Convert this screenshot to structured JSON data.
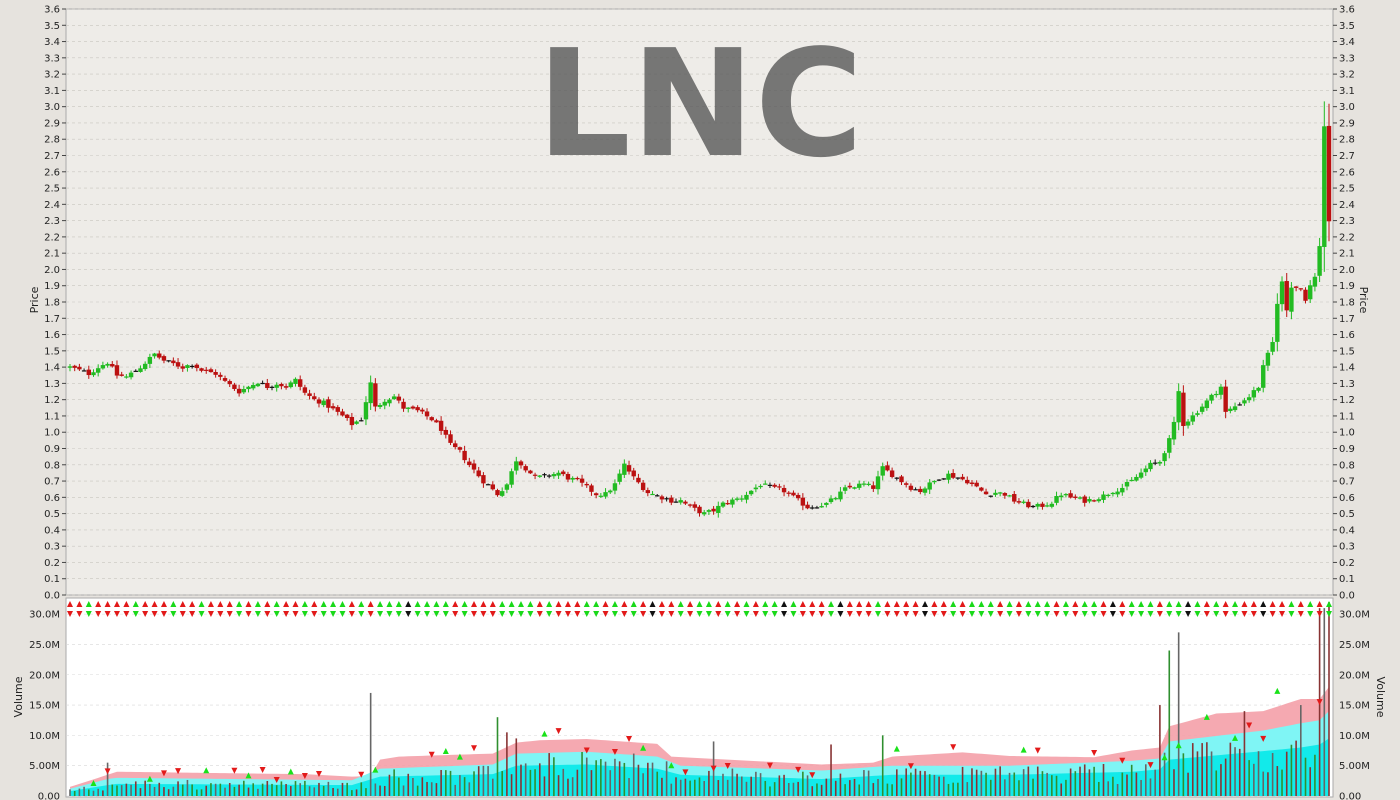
{
  "chart_data": {
    "type": "candlestick",
    "watermark": "LNC",
    "colors": {
      "up": "#22bb22",
      "down": "#bb1111",
      "neutral": "#111111",
      "volume_band_outer": "#f4a0a8",
      "volume_band_mid": "#7ff5f5",
      "volume_band_inner": "#12eaea",
      "plot_bg": "#eeece8",
      "volume_bg": "#ffffff",
      "grid": "#c8c5bf"
    },
    "price_panel": {
      "ylabel": "Price",
      "ylim": [
        0,
        3.6
      ],
      "ticks": [
        "0.0",
        "0.1",
        "0.2",
        "0.3",
        "0.4",
        "0.5",
        "0.6",
        "0.7",
        "0.8",
        "0.9",
        "1.0",
        "1.1",
        "1.2",
        "1.3",
        "1.4",
        "1.5",
        "1.6",
        "1.7",
        "1.8",
        "1.9",
        "2.0",
        "2.1",
        "2.2",
        "2.3",
        "2.4",
        "2.5",
        "2.6",
        "2.7",
        "2.8",
        "2.9",
        "3.0",
        "3.1",
        "3.2",
        "3.3",
        "3.4",
        "3.5",
        "3.6"
      ],
      "close_path": [
        [
          0,
          1.4
        ],
        [
          2,
          1.38
        ],
        [
          4,
          1.36
        ],
        [
          6,
          1.4
        ],
        [
          8,
          1.43
        ],
        [
          10,
          1.35
        ],
        [
          12,
          1.34
        ],
        [
          15,
          1.4
        ],
        [
          18,
          1.48
        ],
        [
          20,
          1.44
        ],
        [
          22,
          1.42
        ],
        [
          24,
          1.4
        ],
        [
          26,
          1.42
        ],
        [
          28,
          1.38
        ],
        [
          31,
          1.36
        ],
        [
          33,
          1.31
        ],
        [
          36,
          1.25
        ],
        [
          38,
          1.28
        ],
        [
          40,
          1.31
        ],
        [
          42,
          1.28
        ],
        [
          44,
          1.3
        ],
        [
          46,
          1.28
        ],
        [
          48,
          1.32
        ],
        [
          50,
          1.24
        ],
        [
          52,
          1.2
        ],
        [
          54,
          1.18
        ],
        [
          56,
          1.14
        ],
        [
          58,
          1.1
        ],
        [
          60,
          1.05
        ],
        [
          62,
          1.08
        ],
        [
          64,
          1.3
        ],
        [
          65,
          1.15
        ],
        [
          67,
          1.2
        ],
        [
          69,
          1.22
        ],
        [
          71,
          1.15
        ],
        [
          74,
          1.13
        ],
        [
          77,
          1.08
        ],
        [
          79,
          1.02
        ],
        [
          81,
          0.92
        ],
        [
          83,
          0.88
        ],
        [
          85,
          0.8
        ],
        [
          88,
          0.7
        ],
        [
          91,
          0.62
        ],
        [
          93,
          0.68
        ],
        [
          95,
          0.83
        ],
        [
          97,
          0.78
        ],
        [
          99,
          0.72
        ],
        [
          101,
          0.73
        ],
        [
          104,
          0.75
        ],
        [
          106,
          0.72
        ],
        [
          108,
          0.7
        ],
        [
          110,
          0.66
        ],
        [
          112,
          0.62
        ],
        [
          114,
          0.62
        ],
        [
          116,
          0.68
        ],
        [
          118,
          0.8
        ],
        [
          120,
          0.72
        ],
        [
          123,
          0.63
        ],
        [
          126,
          0.6
        ],
        [
          128,
          0.58
        ],
        [
          130,
          0.58
        ],
        [
          132,
          0.54
        ],
        [
          135,
          0.5
        ],
        [
          137,
          0.52
        ],
        [
          139,
          0.56
        ],
        [
          141,
          0.58
        ],
        [
          143,
          0.6
        ],
        [
          145,
          0.64
        ],
        [
          147,
          0.68
        ],
        [
          149,
          0.66
        ],
        [
          152,
          0.64
        ],
        [
          155,
          0.58
        ],
        [
          157,
          0.54
        ],
        [
          159,
          0.55
        ],
        [
          161,
          0.56
        ],
        [
          163,
          0.6
        ],
        [
          165,
          0.65
        ],
        [
          167,
          0.67
        ],
        [
          169,
          0.68
        ],
        [
          171,
          0.66
        ],
        [
          173,
          0.78
        ],
        [
          175,
          0.74
        ],
        [
          177,
          0.7
        ],
        [
          179,
          0.66
        ],
        [
          181,
          0.64
        ],
        [
          183,
          0.68
        ],
        [
          185,
          0.72
        ],
        [
          187,
          0.74
        ],
        [
          189,
          0.72
        ],
        [
          191,
          0.7
        ],
        [
          193,
          0.66
        ],
        [
          195,
          0.62
        ],
        [
          197,
          0.63
        ],
        [
          199,
          0.62
        ],
        [
          201,
          0.58
        ],
        [
          203,
          0.56
        ],
        [
          205,
          0.54
        ],
        [
          207,
          0.55
        ],
        [
          209,
          0.57
        ],
        [
          211,
          0.62
        ],
        [
          213,
          0.6
        ],
        [
          216,
          0.58
        ],
        [
          218,
          0.59
        ],
        [
          220,
          0.61
        ],
        [
          222,
          0.64
        ],
        [
          224,
          0.66
        ],
        [
          226,
          0.7
        ],
        [
          228,
          0.75
        ],
        [
          230,
          0.8
        ],
        [
          232,
          0.82
        ],
        [
          234,
          0.95
        ],
        [
          235,
          1.05
        ],
        [
          236,
          1.25
        ],
        [
          237,
          1.05
        ],
        [
          239,
          1.1
        ],
        [
          241,
          1.16
        ],
        [
          243,
          1.22
        ],
        [
          245,
          1.28
        ],
        [
          246,
          1.12
        ],
        [
          248,
          1.16
        ],
        [
          251,
          1.22
        ],
        [
          253,
          1.28
        ],
        [
          254,
          1.4
        ],
        [
          256,
          1.55
        ],
        [
          257,
          1.8
        ],
        [
          258,
          1.92
        ],
        [
          259,
          1.75
        ],
        [
          260,
          1.9
        ],
        [
          262,
          1.88
        ],
        [
          263,
          1.82
        ],
        [
          264,
          1.9
        ],
        [
          265,
          1.95
        ],
        [
          266,
          2.15
        ],
        [
          267,
          2.88
        ],
        [
          268,
          2.3
        ]
      ]
    },
    "volume_panel": {
      "ylabel": "Volume",
      "ylim": [
        0,
        32000000
      ],
      "ticks": [
        {
          "v": 0,
          "label": "0.00"
        },
        {
          "v": 5000000,
          "label": "5.00M"
        },
        {
          "v": 10000000,
          "label": "10.0M"
        },
        {
          "v": 15000000,
          "label": "15.0M"
        },
        {
          "v": 20000000,
          "label": "20.0M"
        },
        {
          "v": 25000000,
          "label": "25.0M"
        },
        {
          "v": 30000000,
          "label": "30.0M"
        }
      ],
      "band_outer_path": [
        [
          0,
          1.5
        ],
        [
          8,
          3.5
        ],
        [
          10,
          4
        ],
        [
          50,
          3.6
        ],
        [
          60,
          3.2
        ],
        [
          64,
          3.3
        ],
        [
          66,
          6
        ],
        [
          70,
          6.5
        ],
        [
          90,
          7
        ],
        [
          95,
          8.8
        ],
        [
          100,
          9.2
        ],
        [
          110,
          9.4
        ],
        [
          125,
          8.6
        ],
        [
          128,
          6.5
        ],
        [
          140,
          6
        ],
        [
          160,
          5.2
        ],
        [
          171,
          5.5
        ],
        [
          175,
          6.5
        ],
        [
          190,
          7.2
        ],
        [
          200,
          6.6
        ],
        [
          218,
          6.4
        ],
        [
          226,
          7.5
        ],
        [
          232,
          8
        ],
        [
          234,
          11.5
        ],
        [
          244,
          13.6
        ],
        [
          254,
          14
        ],
        [
          262,
          16
        ],
        [
          266,
          16
        ],
        [
          268,
          18
        ]
      ],
      "band_mid_path": [
        [
          0,
          1.2
        ],
        [
          8,
          2.8
        ],
        [
          10,
          3
        ],
        [
          60,
          2.6
        ],
        [
          66,
          4.5
        ],
        [
          90,
          5.2
        ],
        [
          95,
          7
        ],
        [
          110,
          7.3
        ],
        [
          125,
          6.5
        ],
        [
          130,
          5
        ],
        [
          160,
          4.2
        ],
        [
          175,
          5
        ],
        [
          200,
          5
        ],
        [
          226,
          5.8
        ],
        [
          232,
          6.2
        ],
        [
          234,
          9
        ],
        [
          254,
          10.8
        ],
        [
          262,
          12
        ],
        [
          266,
          12.5
        ],
        [
          268,
          14
        ]
      ],
      "band_inner_path": [
        [
          0,
          0.8
        ],
        [
          8,
          1.8
        ],
        [
          10,
          2
        ],
        [
          60,
          1.8
        ],
        [
          66,
          3.2
        ],
        [
          90,
          3.6
        ],
        [
          95,
          5
        ],
        [
          110,
          5.2
        ],
        [
          125,
          4.5
        ],
        [
          130,
          3.5
        ],
        [
          160,
          2.8
        ],
        [
          175,
          3.5
        ],
        [
          200,
          3.5
        ],
        [
          226,
          4
        ],
        [
          232,
          4.4
        ],
        [
          234,
          6
        ],
        [
          254,
          7.4
        ],
        [
          262,
          8
        ],
        [
          266,
          8.5
        ],
        [
          268,
          9.5
        ]
      ],
      "spikes": [
        [
          8,
          5.5
        ],
        [
          64,
          17
        ],
        [
          91,
          13
        ],
        [
          93,
          10.5
        ],
        [
          95,
          9.5
        ],
        [
          120,
          7
        ],
        [
          137,
          9
        ],
        [
          162,
          8.5
        ],
        [
          173,
          10
        ],
        [
          232,
          15
        ],
        [
          234,
          24
        ],
        [
          236,
          27
        ],
        [
          250,
          14
        ],
        [
          262,
          15
        ],
        [
          266,
          31
        ],
        [
          267,
          31
        ],
        [
          268,
          32
        ]
      ]
    }
  }
}
